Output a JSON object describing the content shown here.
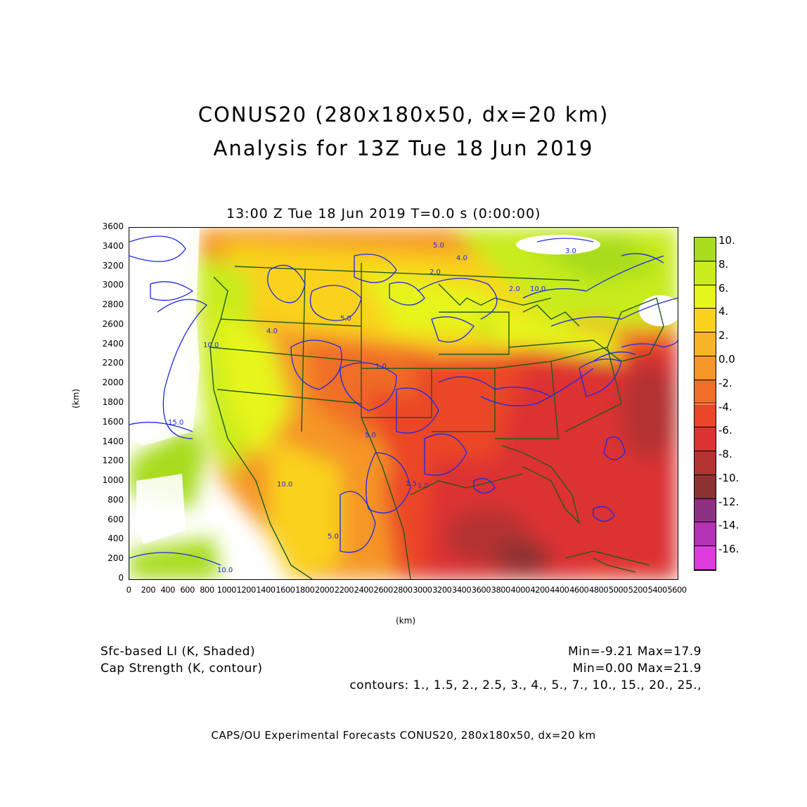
{
  "title": {
    "line1": "CONUS20 (280x180x50, dx=20 km)",
    "line2": "Analysis for 13Z Tue 18 Jun 2019"
  },
  "subtitle": "13:00 Z Tue 18 Jun 2019    T=0.0 s (0:00:00)",
  "axes": {
    "x_label": "(km)",
    "y_label": "(km)",
    "x_ticks": [
      "0",
      "200",
      "400",
      "600",
      "800",
      "1000",
      "1200",
      "1400",
      "1600",
      "1800",
      "2000",
      "2200",
      "2400",
      "2600",
      "2800",
      "3000",
      "3200",
      "3400",
      "3600",
      "3800",
      "4000",
      "4200",
      "4400",
      "4600",
      "4800",
      "5000",
      "5200",
      "5400",
      "5600"
    ],
    "y_ticks": [
      "0",
      "200",
      "400",
      "600",
      "800",
      "1000",
      "1200",
      "1400",
      "1600",
      "1800",
      "2000",
      "2200",
      "2400",
      "2600",
      "2800",
      "3000",
      "3200",
      "3400",
      "3600"
    ]
  },
  "colorbar": {
    "labels": [
      "10.",
      "8.",
      "6.",
      "4.",
      "2.",
      "0.0",
      "-2.",
      "-4.",
      "-6.",
      "-8.",
      "-10.",
      "-12.",
      "-14.",
      "-16."
    ],
    "colors": [
      "#a8dc1e",
      "#c8ec1e",
      "#e6f51e",
      "#fad21e",
      "#fab428",
      "#f59628",
      "#f06e28",
      "#eb4628",
      "#dc3232",
      "#b43232",
      "#8c3232",
      "#8c3282",
      "#b432b4",
      "#dc3cdc"
    ]
  },
  "contour_labels": [
    "15.0",
    "10.0",
    "10.0",
    "10.0",
    "5.0",
    "5.0",
    "4.0",
    "4.0",
    "3.0",
    "2.0",
    "2.0",
    "5.0",
    "5.0",
    "1.5",
    "1.0",
    "1.0",
    "10.0"
  ],
  "footer": {
    "shaded_label": "Sfc-based LI (K, Shaded)",
    "shaded_range": "Min=-9.21 Max=17.9",
    "contour_label": "Cap Strength (K, contour)",
    "contour_range": "Min=0.00 Max=21.9",
    "contours": "contours: 1., 1.5, 2., 2.5, 3., 4., 5., 7., 10., 15., 20., 25.,",
    "credit": "CAPS/OU Experimental Forecasts  CONUS20, 280x180x50, dx=20 km"
  }
}
